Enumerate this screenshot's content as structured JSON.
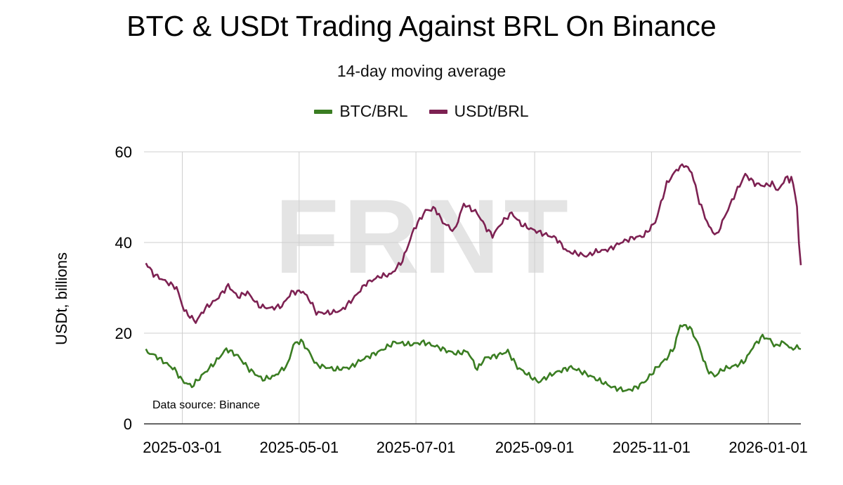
{
  "chart_data": {
    "type": "line",
    "title": "BTC & USDt Trading Against BRL On Binance",
    "subtitle": "14-day moving average",
    "ylabel": "USDt, billions",
    "xlabel": "",
    "ylim": [
      0,
      60
    ],
    "yticks": [
      0,
      20,
      40,
      60
    ],
    "xticks": [
      "2025-03-01",
      "2025-05-01",
      "2025-07-01",
      "2025-09-01",
      "2025-11-01",
      "2026-01-01"
    ],
    "xlim": [
      "2025-02-09",
      "2026-01-18"
    ],
    "grid": true,
    "legend_position": "top-center",
    "watermark": "FRNT",
    "source_note": "Data source: Binance",
    "series": [
      {
        "name": "BTC/BRL",
        "color": "#3a7d22",
        "points": [
          [
            "2025-02-10",
            16
          ],
          [
            "2025-02-15",
            15
          ],
          [
            "2025-02-20",
            13.5
          ],
          [
            "2025-02-25",
            12
          ],
          [
            "2025-03-01",
            9.5
          ],
          [
            "2025-03-06",
            8.3
          ],
          [
            "2025-03-12",
            11
          ],
          [
            "2025-03-18",
            13.5
          ],
          [
            "2025-03-24",
            16.5
          ],
          [
            "2025-03-30",
            15
          ],
          [
            "2025-04-05",
            12
          ],
          [
            "2025-04-12",
            9.8
          ],
          [
            "2025-04-18",
            10.5
          ],
          [
            "2025-04-25",
            13
          ],
          [
            "2025-04-28",
            17.5
          ],
          [
            "2025-05-02",
            18.3
          ],
          [
            "2025-05-06",
            16
          ],
          [
            "2025-05-10",
            13
          ],
          [
            "2025-05-20",
            12
          ],
          [
            "2025-05-28",
            12.5
          ],
          [
            "2025-06-02",
            14
          ],
          [
            "2025-06-12",
            16
          ],
          [
            "2025-06-20",
            18
          ],
          [
            "2025-06-28",
            17.5
          ],
          [
            "2025-07-05",
            18
          ],
          [
            "2025-07-12",
            17
          ],
          [
            "2025-07-18",
            16
          ],
          [
            "2025-07-22",
            15.5
          ],
          [
            "2025-07-28",
            16
          ],
          [
            "2025-08-02",
            12
          ],
          [
            "2025-08-06",
            14.5
          ],
          [
            "2025-08-12",
            15
          ],
          [
            "2025-08-18",
            16
          ],
          [
            "2025-08-23",
            12.5
          ],
          [
            "2025-08-28",
            11
          ],
          [
            "2025-09-03",
            9.2
          ],
          [
            "2025-09-08",
            10.5
          ],
          [
            "2025-09-13",
            11.5
          ],
          [
            "2025-09-20",
            12.5
          ],
          [
            "2025-09-28",
            11
          ],
          [
            "2025-10-05",
            9.5
          ],
          [
            "2025-10-12",
            8
          ],
          [
            "2025-10-19",
            7.3
          ],
          [
            "2025-10-24",
            8
          ],
          [
            "2025-10-29",
            9.5
          ],
          [
            "2025-11-04",
            12.5
          ],
          [
            "2025-11-09",
            14.5
          ],
          [
            "2025-11-13",
            17
          ],
          [
            "2025-11-16",
            21.8
          ],
          [
            "2025-11-21",
            21.3
          ],
          [
            "2025-11-25",
            18
          ],
          [
            "2025-11-30",
            12
          ],
          [
            "2025-12-04",
            10.5
          ],
          [
            "2025-12-08",
            12
          ],
          [
            "2025-12-12",
            12.5
          ],
          [
            "2025-12-16",
            13
          ],
          [
            "2025-12-20",
            14
          ],
          [
            "2025-12-24",
            17
          ],
          [
            "2025-12-29",
            19.3
          ],
          [
            "2026-01-02",
            18.5
          ],
          [
            "2026-01-05",
            17
          ],
          [
            "2026-01-08",
            18
          ],
          [
            "2026-01-11",
            17.5
          ],
          [
            "2026-01-13",
            16.3
          ],
          [
            "2026-01-15",
            17
          ],
          [
            "2026-01-18",
            16.5
          ]
        ]
      },
      {
        "name": "USDt/BRL",
        "color": "#7d2152",
        "points": [
          [
            "2025-02-10",
            35.5
          ],
          [
            "2025-02-14",
            33
          ],
          [
            "2025-02-20",
            31.5
          ],
          [
            "2025-02-26",
            30
          ],
          [
            "2025-03-02",
            25
          ],
          [
            "2025-03-08",
            22.5
          ],
          [
            "2025-03-13",
            25.5
          ],
          [
            "2025-03-19",
            27.5
          ],
          [
            "2025-03-25",
            30.5
          ],
          [
            "2025-03-30",
            28
          ],
          [
            "2025-04-04",
            29
          ],
          [
            "2025-04-10",
            26
          ],
          [
            "2025-04-16",
            25.5
          ],
          [
            "2025-04-22",
            26
          ],
          [
            "2025-04-27",
            29
          ],
          [
            "2025-05-03",
            29.2
          ],
          [
            "2025-05-07",
            27
          ],
          [
            "2025-05-10",
            24.5
          ],
          [
            "2025-05-17",
            24.5
          ],
          [
            "2025-05-23",
            25
          ],
          [
            "2025-05-29",
            27.5
          ],
          [
            "2025-06-05",
            31
          ],
          [
            "2025-06-12",
            32.5
          ],
          [
            "2025-06-18",
            33
          ],
          [
            "2025-06-24",
            36
          ],
          [
            "2025-06-30",
            43
          ],
          [
            "2025-07-06",
            47
          ],
          [
            "2025-07-11",
            47.5
          ],
          [
            "2025-07-15",
            44.5
          ],
          [
            "2025-07-21",
            42.5
          ],
          [
            "2025-07-26",
            48.5
          ],
          [
            "2025-08-02",
            46.5
          ],
          [
            "2025-08-07",
            43
          ],
          [
            "2025-08-10",
            41.5
          ],
          [
            "2025-08-15",
            44.5
          ],
          [
            "2025-08-20",
            46.5
          ],
          [
            "2025-08-25",
            44
          ],
          [
            "2025-08-30",
            43
          ],
          [
            "2025-09-05",
            42
          ],
          [
            "2025-09-12",
            41
          ],
          [
            "2025-09-18",
            38
          ],
          [
            "2025-09-24",
            37.5
          ],
          [
            "2025-09-28",
            37
          ],
          [
            "2025-10-03",
            38
          ],
          [
            "2025-10-10",
            38.5
          ],
          [
            "2025-10-16",
            40
          ],
          [
            "2025-10-22",
            41
          ],
          [
            "2025-10-28",
            41.5
          ],
          [
            "2025-11-03",
            44.5
          ],
          [
            "2025-11-09",
            53
          ],
          [
            "2025-11-14",
            56
          ],
          [
            "2025-11-18",
            57.2
          ],
          [
            "2025-11-22",
            55.5
          ],
          [
            "2025-11-26",
            49
          ],
          [
            "2025-12-01",
            43.5
          ],
          [
            "2025-12-05",
            41.5
          ],
          [
            "2025-12-09",
            45.5
          ],
          [
            "2025-12-15",
            51
          ],
          [
            "2025-12-20",
            55
          ],
          [
            "2025-12-25",
            53
          ],
          [
            "2025-12-30",
            52.5
          ],
          [
            "2026-01-03",
            53
          ],
          [
            "2026-01-06",
            51.5
          ],
          [
            "2026-01-08",
            52.5
          ],
          [
            "2026-01-10",
            54.5
          ],
          [
            "2026-01-12",
            53.5
          ],
          [
            "2026-01-13",
            54.8
          ],
          [
            "2026-01-14",
            52.5
          ],
          [
            "2026-01-15",
            50.5
          ],
          [
            "2026-01-16",
            48
          ],
          [
            "2026-01-17",
            40
          ],
          [
            "2026-01-18",
            35
          ]
        ]
      }
    ]
  }
}
